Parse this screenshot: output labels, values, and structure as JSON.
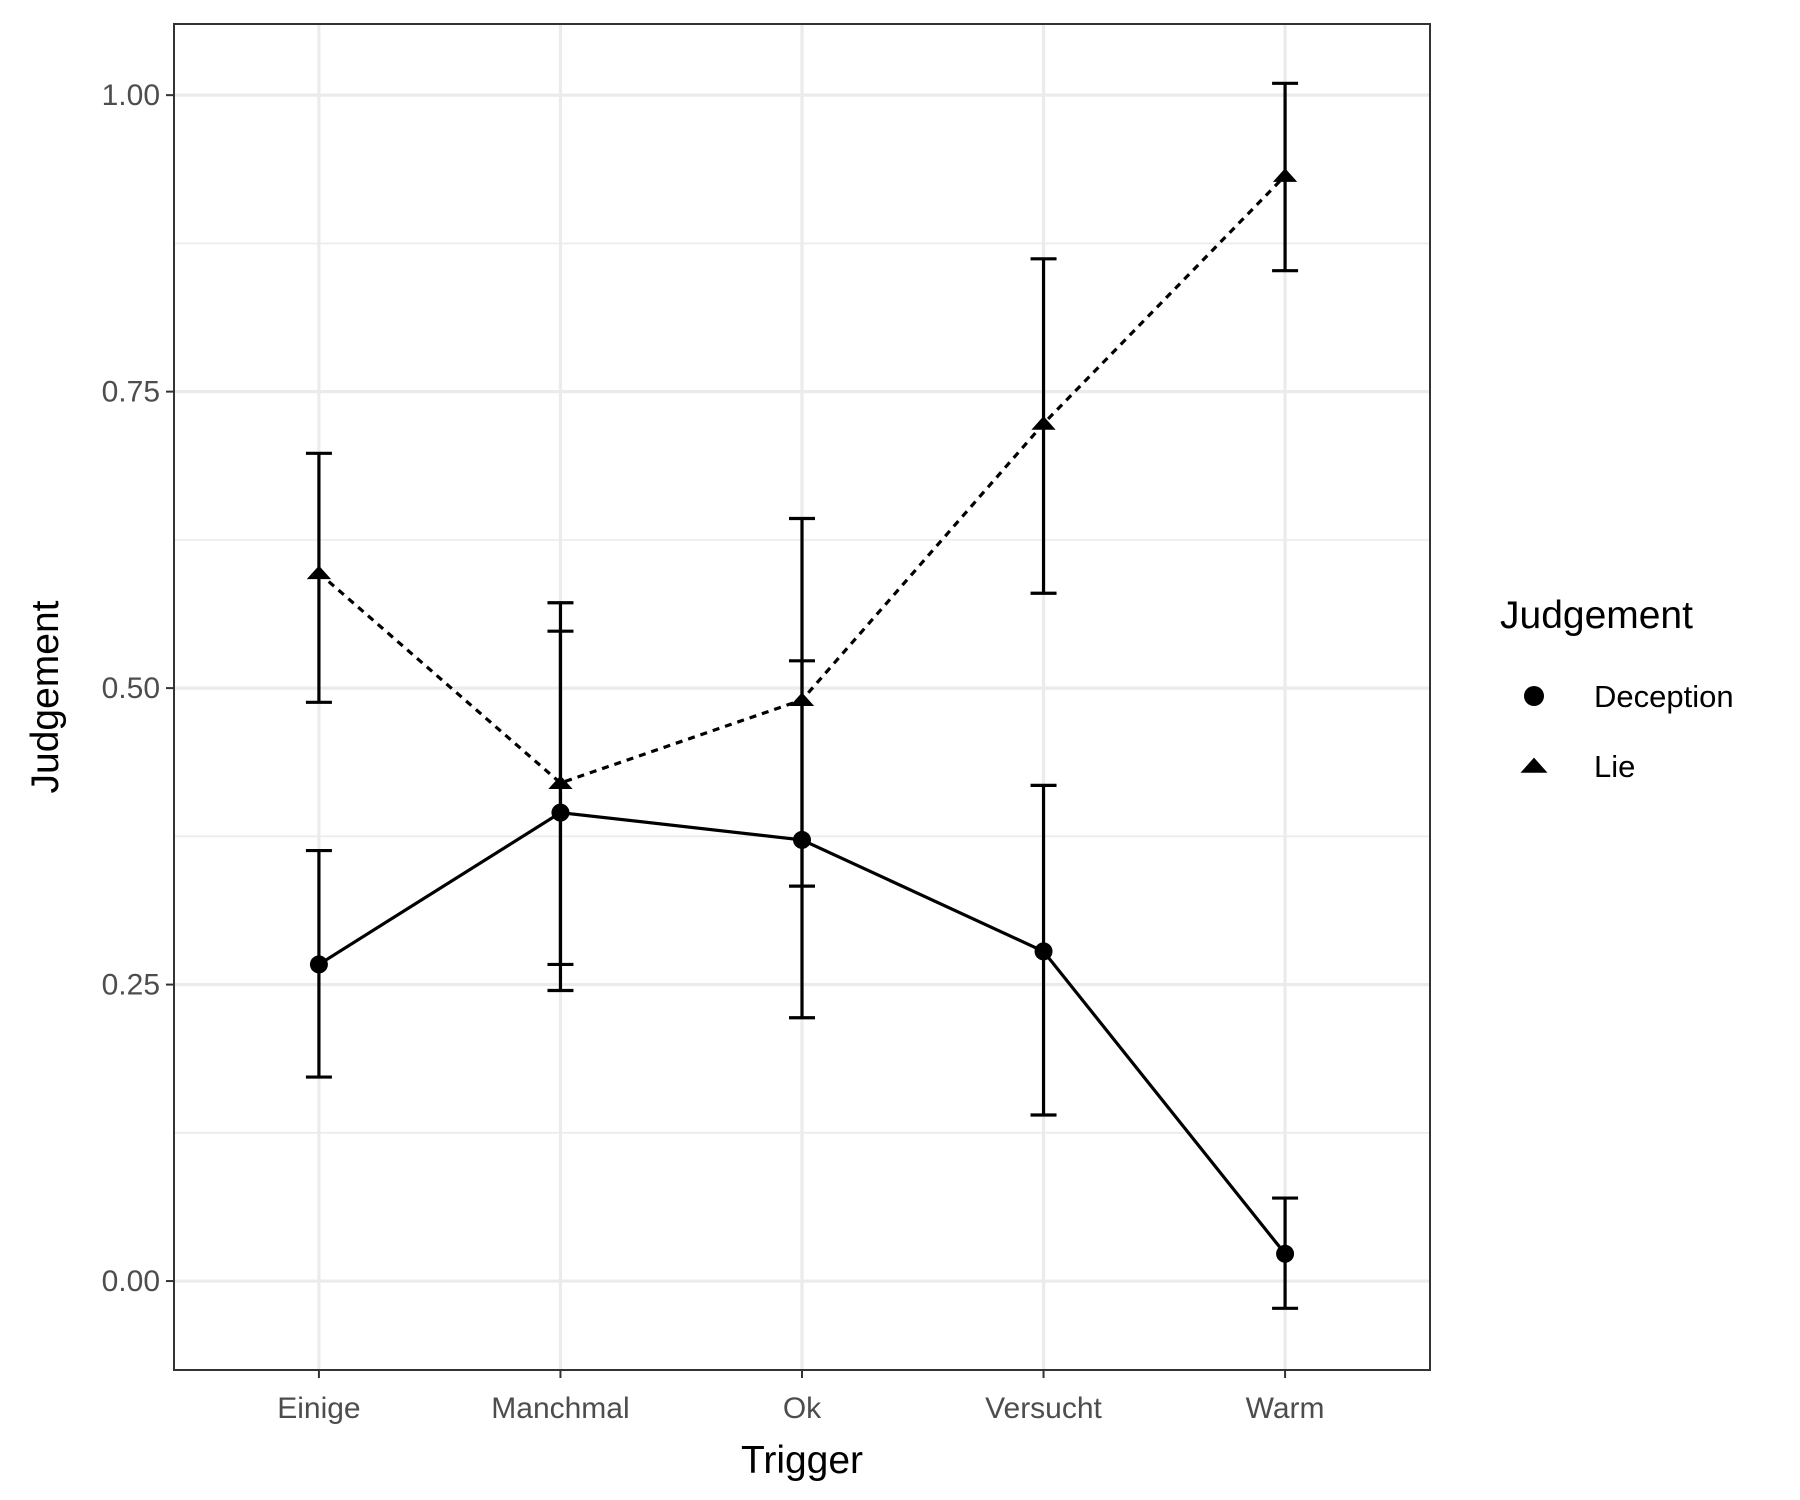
{
  "chart_data": {
    "type": "line",
    "xlabel": "Trigger",
    "ylabel": "Judgement",
    "categories": [
      "Einige",
      "Manchmal",
      "Ok",
      "Versucht",
      "Warm"
    ],
    "ylim": [
      -0.075,
      1.06
    ],
    "yticks": [
      0.0,
      0.25,
      0.5,
      0.75,
      1.0
    ],
    "ytick_labels": [
      "0.00",
      "0.25",
      "0.50",
      "0.75",
      "1.00"
    ],
    "grid": true,
    "legend": {
      "title": "Judgement",
      "position": "right"
    },
    "series": [
      {
        "name": "Deception",
        "marker": "circle",
        "line_style": "solid",
        "values": [
          0.267,
          0.395,
          0.372,
          0.278,
          0.023
        ],
        "error_low": [
          0.172,
          0.245,
          0.222,
          0.14,
          -0.023
        ],
        "error_high": [
          0.363,
          0.548,
          0.523,
          0.418,
          0.07
        ]
      },
      {
        "name": "Lie",
        "marker": "triangle",
        "line_style": "dashed",
        "values": [
          0.597,
          0.42,
          0.49,
          0.723,
          0.932
        ],
        "error_low": [
          0.488,
          0.267,
          0.333,
          0.58,
          0.852
        ],
        "error_high": [
          0.698,
          0.572,
          0.643,
          0.862,
          1.01
        ]
      }
    ]
  },
  "colors": {
    "ink": "#000000",
    "grid": "#ebebeb",
    "tick_text": "#4d4d4d",
    "panel_border": "#333333"
  }
}
